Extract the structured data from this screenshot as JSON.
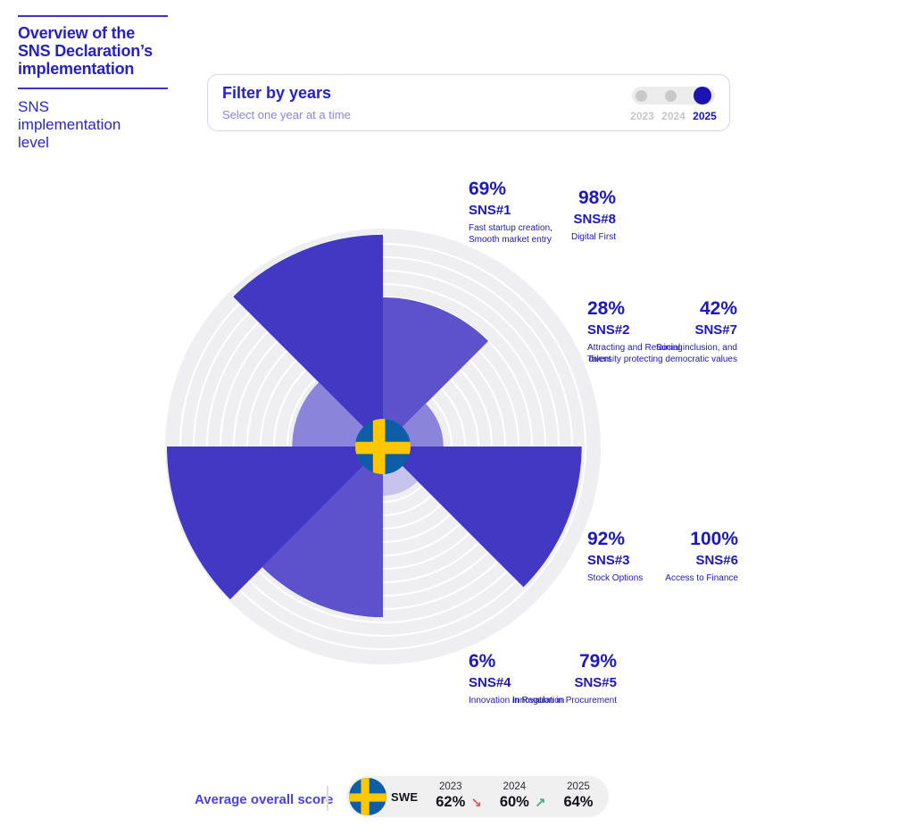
{
  "header": {
    "title": "Overview of the\nSNS Declaration’s\nimplementation",
    "subtitle": "SNS\nimplementation\nlevel"
  },
  "filter": {
    "title": "Filter by years",
    "subtitle": "Select one year at a time",
    "years": [
      "2023",
      "2024",
      "2025"
    ],
    "selected_year": "2025"
  },
  "chart_data": {
    "type": "polar-sector",
    "title": "SNS implementation level",
    "country": "Sweden",
    "center_icon": "sweden-flag",
    "unit": "%",
    "max": 100,
    "year_shown": "2025",
    "sectors": [
      {
        "id": "SNS#1",
        "value": 69,
        "label": "Fast startup creation,\nSmooth market entry"
      },
      {
        "id": "SNS#2",
        "value": 28,
        "label": "Attracting and Retaining\nTalent"
      },
      {
        "id": "SNS#3",
        "value": 92,
        "label": "Stock Options"
      },
      {
        "id": "SNS#4",
        "value": 6,
        "label": "Innovation in Regulation"
      },
      {
        "id": "SNS#5",
        "value": 79,
        "label": "Innovation in Procurement"
      },
      {
        "id": "SNS#6",
        "value": 100,
        "label": "Access to Finance"
      },
      {
        "id": "SNS#7",
        "value": 42,
        "label": "Social inclusion, and\ndiversity protecting democratic values"
      },
      {
        "id": "SNS#8",
        "value": 98,
        "label": "Digital First"
      }
    ],
    "average_overall_score": {
      "label": "Average overall score",
      "country_code": "SWE",
      "series": [
        {
          "year": "2023",
          "value": 62
        },
        {
          "year": "2024",
          "value": 60
        },
        {
          "year": "2025",
          "value": 64
        }
      ],
      "trends_between": [
        "down",
        "up"
      ]
    }
  },
  "colors": {
    "primary_text": "#2721C0",
    "accent": "#1A14B4",
    "wedge_base": "#4238C4",
    "chart_track": "#EFEFF1",
    "ring": "#FFFFFF",
    "muted": "#C9C9C9",
    "score_label": "#4A42E8",
    "trend_down": "#F4515C",
    "trend_up": "#3FAE7E",
    "flag_blue": "#0D5EA6",
    "flag_yellow": "#FEC700"
  },
  "footer": {
    "label": "Average overall score",
    "country_code": "SWE"
  }
}
